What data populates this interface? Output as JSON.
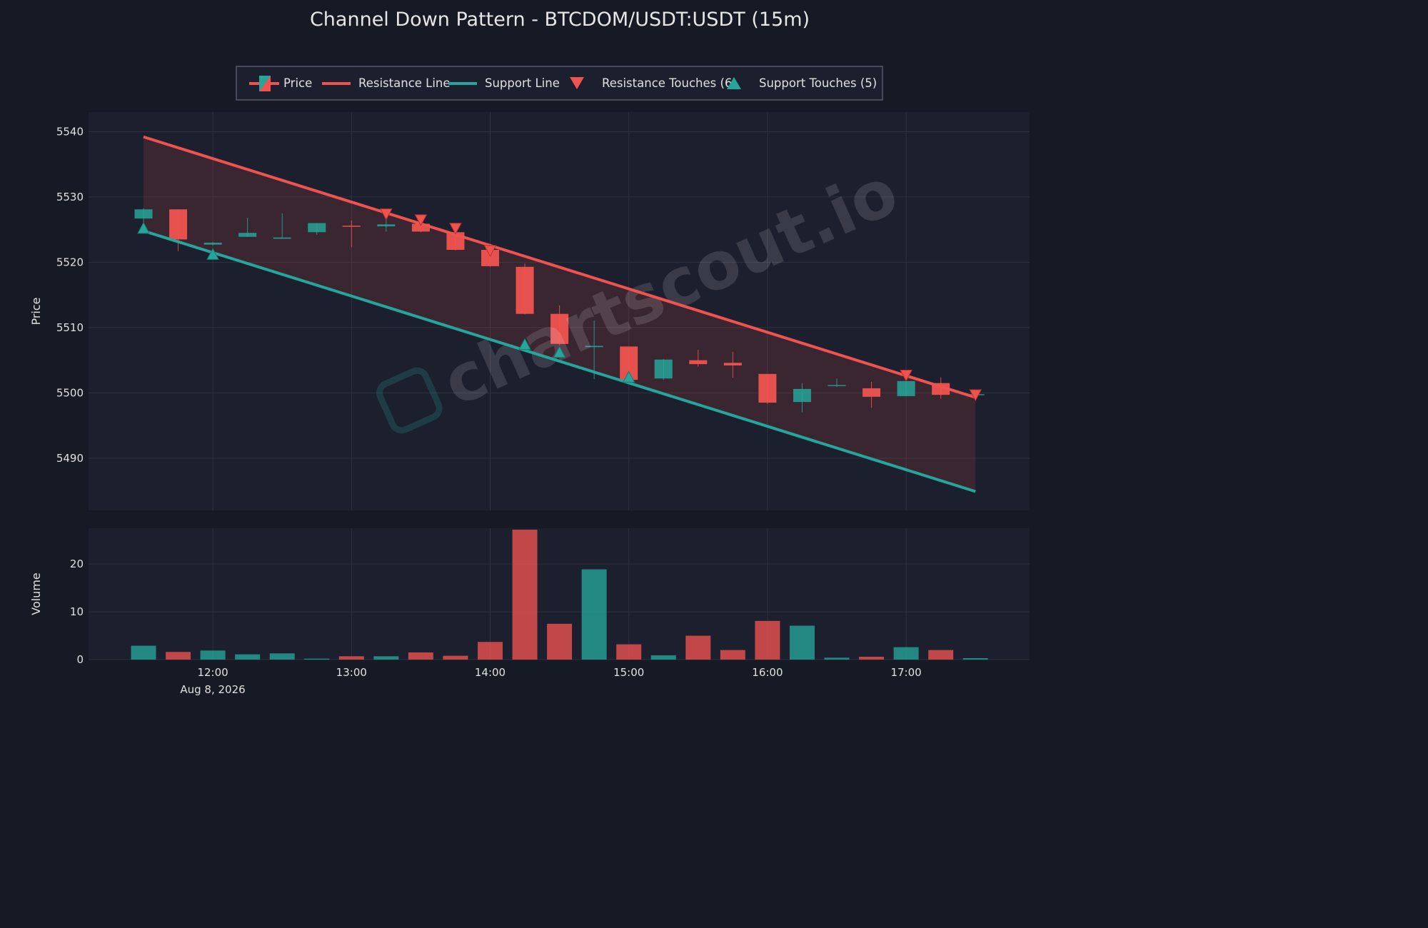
{
  "chart_data": {
    "type": "candlestick",
    "title": "Channel Down Pattern - BTCDOM/USDT:USDT (15m)",
    "date_label": "Aug 8, 2026",
    "watermark": "chartscout.io",
    "price_axis": {
      "label": "Price",
      "ylim": [
        5482,
        5543
      ],
      "ticks": [
        5490,
        5500,
        5510,
        5520,
        5530,
        5540
      ]
    },
    "volume_axis": {
      "label": "Volume",
      "ylim": [
        0,
        27.5
      ],
      "ticks": [
        0,
        10,
        20
      ]
    },
    "x_ticks": [
      "12:00",
      "13:00",
      "14:00",
      "15:00",
      "16:00",
      "17:00"
    ],
    "legend": {
      "placement": "top-center",
      "entries": [
        "Price",
        "Resistance Line",
        "Support Line",
        "Resistance Touches (6)",
        "Support Touches (5)"
      ]
    },
    "colors": {
      "up": "#26a69a",
      "down": "#ef5350",
      "resistance": "#ef5350",
      "support": "#26a69a",
      "background": "#161a25",
      "plot_bg": "#1c1f2d",
      "grid": "#2e3241"
    },
    "candles": [
      {
        "time": "11:30",
        "open": 5526.7,
        "high": 5528.3,
        "low": 5525.0,
        "close": 5528.1,
        "volume": 2.9
      },
      {
        "time": "11:45",
        "open": 5528.1,
        "high": 5528.1,
        "low": 5521.7,
        "close": 5523.5,
        "volume": 1.6
      },
      {
        "time": "12:00",
        "open": 5522.7,
        "high": 5523.1,
        "low": 5522.6,
        "close": 5523.0,
        "volume": 1.9
      },
      {
        "time": "12:15",
        "open": 5523.9,
        "high": 5526.8,
        "low": 5523.9,
        "close": 5524.5,
        "volume": 1.1
      },
      {
        "time": "12:30",
        "open": 5523.6,
        "high": 5527.5,
        "low": 5523.6,
        "close": 5523.8,
        "volume": 1.3
      },
      {
        "time": "12:45",
        "open": 5524.6,
        "high": 5526.0,
        "low": 5524.2,
        "close": 5526.0,
        "volume": 0.2
      },
      {
        "time": "13:00",
        "open": 5525.6,
        "high": 5526.4,
        "low": 5522.3,
        "close": 5525.5,
        "volume": 0.7
      },
      {
        "time": "13:15",
        "open": 5525.5,
        "high": 5527.0,
        "low": 5524.7,
        "close": 5525.8,
        "volume": 0.7
      },
      {
        "time": "13:30",
        "open": 5525.9,
        "high": 5526.2,
        "low": 5524.6,
        "close": 5524.7,
        "volume": 1.5
      },
      {
        "time": "13:45",
        "open": 5524.6,
        "high": 5525.1,
        "low": 5521.8,
        "close": 5521.9,
        "volume": 0.8
      },
      {
        "time": "14:00",
        "open": 5521.9,
        "high": 5522.0,
        "low": 5519.3,
        "close": 5519.4,
        "volume": 3.7
      },
      {
        "time": "14:15",
        "open": 5519.3,
        "high": 5519.8,
        "low": 5512.0,
        "close": 5512.1,
        "volume": 27.2
      },
      {
        "time": "14:30",
        "open": 5512.1,
        "high": 5513.4,
        "low": 5507.3,
        "close": 5507.5,
        "volume": 7.5
      },
      {
        "time": "14:45",
        "open": 5507.0,
        "high": 5511.1,
        "low": 5502.1,
        "close": 5507.2,
        "volume": 18.9
      },
      {
        "time": "15:00",
        "open": 5507.1,
        "high": 5507.1,
        "low": 5501.9,
        "close": 5502.0,
        "volume": 3.2
      },
      {
        "time": "15:15",
        "open": 5502.2,
        "high": 5505.2,
        "low": 5502.0,
        "close": 5505.1,
        "volume": 0.9
      },
      {
        "time": "15:30",
        "open": 5505.0,
        "high": 5506.6,
        "low": 5504.0,
        "close": 5504.4,
        "volume": 5.0
      },
      {
        "time": "15:45",
        "open": 5504.6,
        "high": 5506.3,
        "low": 5502.3,
        "close": 5504.2,
        "volume": 2.0
      },
      {
        "time": "16:00",
        "open": 5502.9,
        "high": 5502.9,
        "low": 5498.3,
        "close": 5498.5,
        "volume": 8.1
      },
      {
        "time": "16:15",
        "open": 5498.6,
        "high": 5501.5,
        "low": 5497.0,
        "close": 5500.6,
        "volume": 7.1
      },
      {
        "time": "16:30",
        "open": 5501.1,
        "high": 5502.2,
        "low": 5500.9,
        "close": 5501.2,
        "volume": 0.4
      },
      {
        "time": "16:45",
        "open": 5500.7,
        "high": 5501.7,
        "low": 5497.7,
        "close": 5499.4,
        "volume": 0.6
      },
      {
        "time": "17:00",
        "open": 5499.5,
        "high": 5502.0,
        "low": 5499.5,
        "close": 5501.8,
        "volume": 2.6
      },
      {
        "time": "17:15",
        "open": 5501.5,
        "high": 5502.4,
        "low": 5499.1,
        "close": 5499.7,
        "volume": 2.0
      },
      {
        "time": "17:30",
        "open": 5499.7,
        "high": 5499.9,
        "low": 5499.6,
        "close": 5499.8,
        "volume": 0.3
      }
    ],
    "resistance_line": {
      "start": {
        "time": "11:30",
        "price": 5539.2
      },
      "end": {
        "time": "17:30",
        "price": 5499.3
      }
    },
    "support_line": {
      "start": {
        "time": "11:30",
        "price": 5524.8
      },
      "end": {
        "time": "17:30",
        "price": 5484.9
      }
    },
    "resistance_touches": [
      {
        "time": "13:15",
        "price": 5527.3
      },
      {
        "time": "13:30",
        "price": 5526.4
      },
      {
        "time": "13:45",
        "price": 5525.1
      },
      {
        "time": "14:00",
        "price": 5521.7
      },
      {
        "time": "17:00",
        "price": 5502.6
      },
      {
        "time": "17:30",
        "price": 5499.6
      }
    ],
    "support_touches": [
      {
        "time": "11:30",
        "price": 5525.2
      },
      {
        "time": "12:00",
        "price": 5521.2
      },
      {
        "time": "14:15",
        "price": 5507.4
      },
      {
        "time": "14:30",
        "price": 5506.2
      },
      {
        "time": "15:00",
        "price": 5502.4
      }
    ]
  }
}
